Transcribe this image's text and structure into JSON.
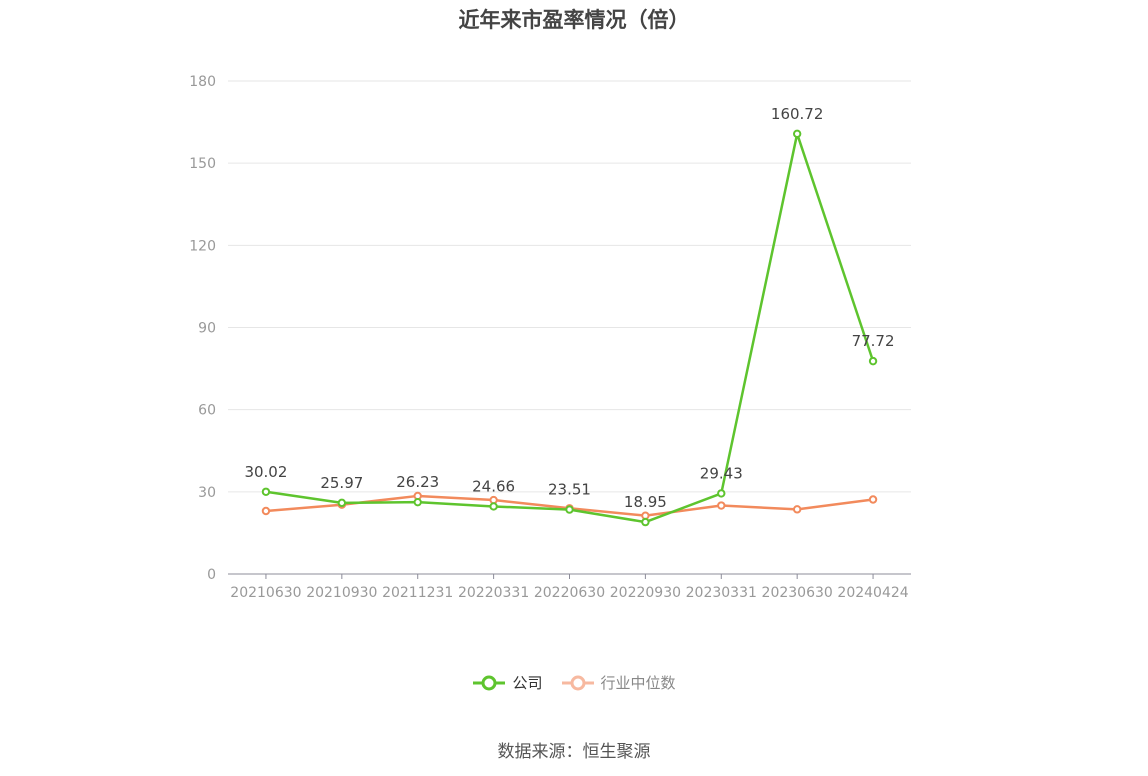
{
  "chart_data": {
    "type": "line",
    "title": "近年来市盈率情况（倍）",
    "categories": [
      "20210630",
      "20210930",
      "20211231",
      "20220331",
      "20220630",
      "20220930",
      "20230331",
      "20230630",
      "20240424"
    ],
    "ylim": [
      0,
      180
    ],
    "yticks": [
      0,
      30,
      60,
      90,
      120,
      150,
      180
    ],
    "grid": true,
    "legend_position": "bottom",
    "series": [
      {
        "name": "公司",
        "color": "#5ec42e",
        "values": [
          30.02,
          25.97,
          26.23,
          24.66,
          23.51,
          18.95,
          29.43,
          160.72,
          77.72
        ],
        "labels": [
          "30.02",
          "25.97",
          "26.23",
          "24.66",
          "23.51",
          "18.95",
          "29.43",
          "160.72",
          "77.72"
        ]
      },
      {
        "name": "行业中位数",
        "color": "#f28a5c",
        "values": [
          23.0,
          25.3,
          28.5,
          27.0,
          24.0,
          21.3,
          25.0,
          23.6,
          27.2
        ]
      }
    ]
  },
  "legend": {
    "company_label": "公司",
    "industry_label": "行业中位数"
  },
  "source_text": "数据来源：恒生聚源"
}
